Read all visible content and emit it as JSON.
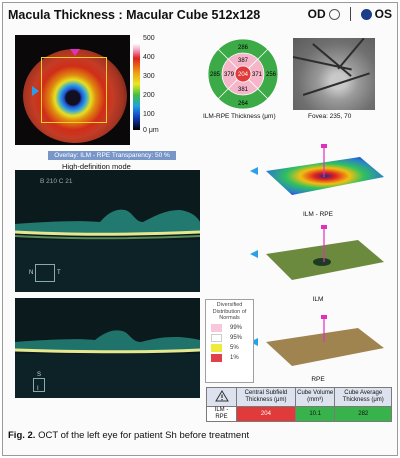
{
  "header": {
    "title": "Macula Thickness : Macular Cube 512x128"
  },
  "eye_selector": {
    "od_label": "OD",
    "os_label": "OS",
    "selected": "OS"
  },
  "thickness_map": {
    "scale_labels": [
      "500",
      "400",
      "300",
      "200",
      "100",
      "0 μm"
    ],
    "overlay_text": "Overlay: ILM - RPE  Transparency: 50 %",
    "mode_text": "High-definition mode"
  },
  "etdrs_grid": {
    "caption": "ILM-RPE Thickness (μm)",
    "center": "204",
    "inner": {
      "superior": "387",
      "nasal": "371",
      "inferior": "381",
      "temporal": "379"
    },
    "outer": {
      "superior": "286",
      "nasal": "256",
      "inferior": "264",
      "temporal": "285"
    }
  },
  "fundus": {
    "caption": "Fovea: 235, 70"
  },
  "bscan_top": {
    "label": "B 210 C 21",
    "side_left": "N",
    "side_right": "T"
  },
  "bscan_bottom": {
    "side_top": "S",
    "side_bottom": "I"
  },
  "surface_maps": [
    {
      "caption": "ILM - RPE"
    },
    {
      "caption": "ILM"
    },
    {
      "caption": "RPE"
    }
  ],
  "legend": {
    "header": "Diversified Distribution of Normals",
    "entries": [
      {
        "label": "99%",
        "color": "#f7c8dc"
      },
      {
        "label": "95%",
        "color": "#ffffff"
      },
      {
        "label": "5%",
        "color": "#f0ea3a"
      },
      {
        "label": "1%",
        "color": "#e0404a"
      }
    ]
  },
  "stats_table": {
    "headers": [
      "Central Subfield Thickness (μm)",
      "Cube Volume (mm³)",
      "Cube Average Thickness (μm)"
    ],
    "row_label": "ILM - RPE",
    "values": [
      "204",
      "10.1",
      "282"
    ]
  },
  "caption": {
    "label": "Fig. 2.",
    "text": " OCT of the left eye for patient Sh before treatment"
  },
  "colors": {
    "os_selected": "#1a3e88",
    "overlay_bar": "#7896c8",
    "outer_ring": "#3caa46",
    "inner_ring": "#f4b6c8",
    "center": "#e03a3a",
    "grid_line": "#ffffff"
  }
}
